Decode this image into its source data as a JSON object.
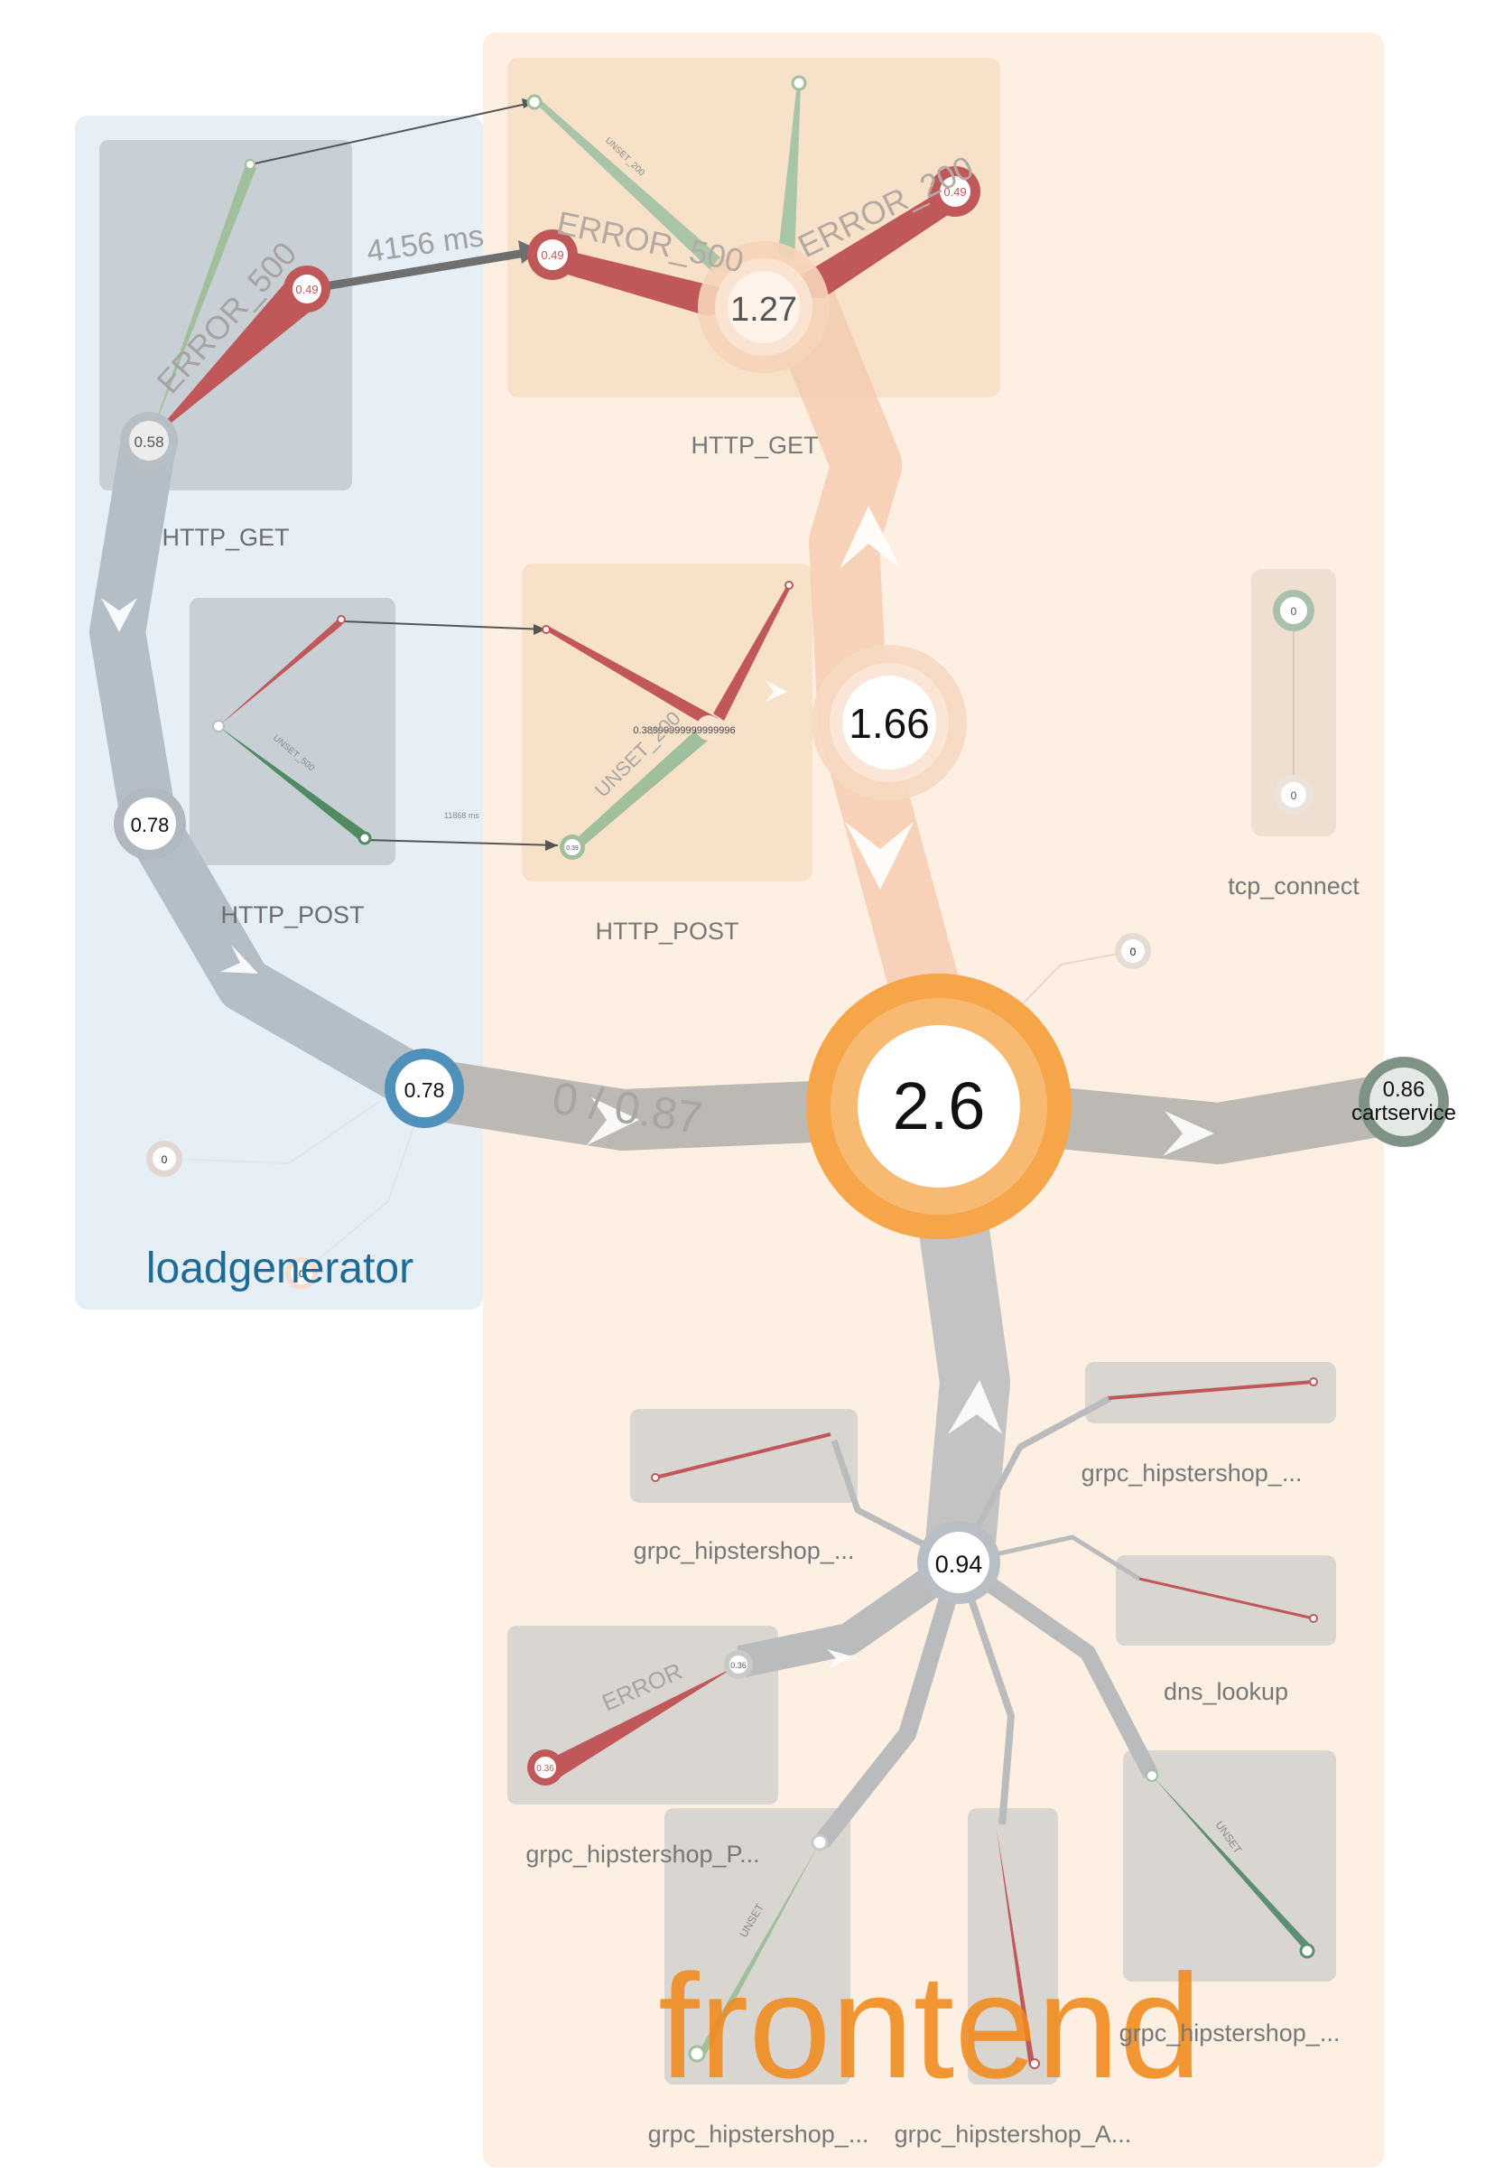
{
  "groups": {
    "loadgenerator": {
      "title": "loadgenerator",
      "color": "#1f6b97"
    },
    "frontend": {
      "title": "frontend",
      "color": "#f18a1c"
    }
  },
  "operations": {
    "lg_http_get": "HTTP_GET",
    "lg_http_post": "HTTP_POST",
    "fe_http_get": "HTTP_GET",
    "fe_http_post": "HTTP_POST",
    "fe_tcp_connect": "tcp_connect",
    "fe_dns_lookup": "dns_lookup",
    "grpc_top_right": "grpc_hipstershop_...",
    "grpc_mid_left": "grpc_hipstershop_...",
    "grpc_left": "grpc_hipstershop_P...",
    "grpc_bottom_left": "grpc_hipstershop_...",
    "grpc_bottom_mid": "grpc_hipstershop_A...",
    "grpc_bottom_right": "grpc_hipstershop_..."
  },
  "services": {
    "cartservice": {
      "label": "cartservice",
      "value": "0.86"
    }
  },
  "nodes": {
    "frontend_main": "2.6",
    "frontend_http_get": "1.27",
    "frontend_http_post": "1.66",
    "frontend_grpc_hub": "0.94",
    "lg_main": "0.78",
    "lg_post": "0.78",
    "lg_get": "0.58",
    "lg_error_get": "0.49",
    "fe_error_500": "0.49",
    "fe_error_200": "0.49",
    "fe_post_inner": "0.38999999999999996",
    "fe_post_target": "0.39",
    "grpc_error_small": "0.36",
    "grpc_error_big": "0.36",
    "tcp_top": "0",
    "tcp_bottom": "0",
    "fe_small_zero": "0",
    "lg_small_zero_a": "0",
    "lg_small_zero_b": "0"
  },
  "edges": {
    "lg_to_frontend": "0 / 0.87",
    "lg_get_to_fe_get": "4156 ms",
    "lg_post_ms": "11868 ms"
  },
  "status_labels": {
    "lg_error_500": "ERROR_500",
    "fe_error_500": "ERROR_500",
    "fe_error_200": "ERROR_200",
    "fe_unset_200_get": "UNSET_200",
    "fe_unset_200_post": "UNSET_200",
    "grpc_error": "ERROR",
    "grpc_unset_a": "UNSET",
    "grpc_unset_b": "UNSET",
    "lg_unset_500": "UNSET_500"
  },
  "colors": {
    "error": "#c0585a",
    "unset": "#9fbf9d",
    "frontend_accent": "#f3a245",
    "loadgen_accent": "#5b93b8",
    "edge_gray": "#b8b9bb"
  }
}
